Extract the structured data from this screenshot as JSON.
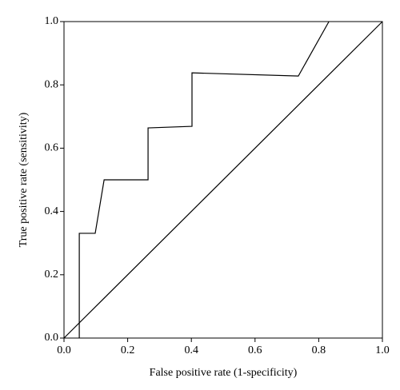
{
  "chart_data": {
    "type": "line",
    "x_label": "False positive rate (1-specificity)",
    "y_label": "True positive rate (sensitivity)",
    "series": [
      {
        "color": "#000000",
        "x": [
          0.048,
          0.048,
          0.098,
          0.126,
          0.264,
          0.264,
          0.402,
          0.402,
          0.736,
          0.832
        ],
        "values": [
          0,
          0.331,
          0.331,
          0.5,
          0.5,
          0.664,
          0.669,
          0.838,
          0.828,
          1.0
        ]
      },
      {
        "color": "#000000",
        "x": [
          0,
          1
        ],
        "values": [
          0,
          1
        ]
      }
    ],
    "xlim": [
      0,
      1
    ],
    "ylim": [
      0,
      1
    ],
    "xticks": [
      {
        "value": 0,
        "label": "0.0"
      },
      {
        "value": 0.2,
        "label": "0.2"
      },
      {
        "value": 0.4,
        "label": "0.4"
      },
      {
        "value": 0.6,
        "label": "0.6"
      },
      {
        "value": 0.8,
        "label": "0.8"
      },
      {
        "value": 1,
        "label": "1.0"
      }
    ],
    "yticks": [
      {
        "value": 0,
        "label": "0.0"
      },
      {
        "value": 0.2,
        "label": "0.2"
      },
      {
        "value": 0.4,
        "label": "0.4"
      },
      {
        "value": 0.6,
        "label": "0.6"
      },
      {
        "value": 0.8,
        "label": "0.8"
      },
      {
        "value": 1,
        "label": "1.0"
      }
    ],
    "grid": false
  }
}
